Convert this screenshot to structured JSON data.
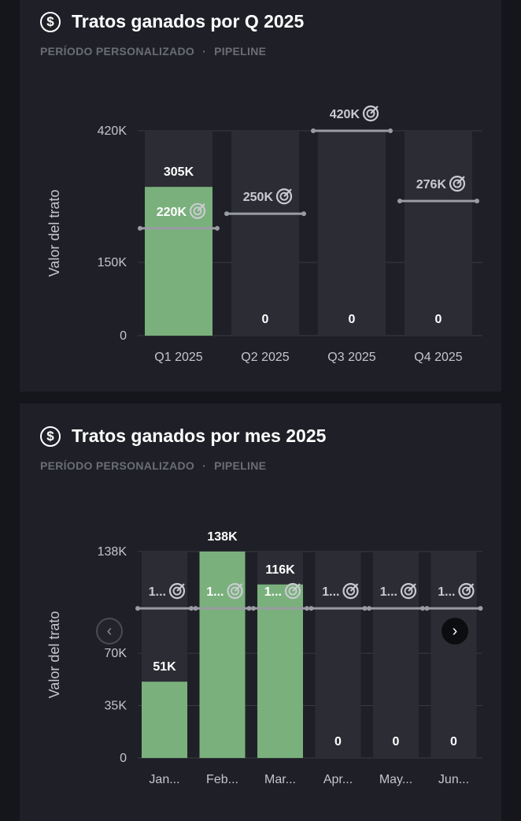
{
  "colors": {
    "bar_won": "#7ab07c",
    "bar_empty": "#2c2d34",
    "target_line": "#9a9ca3",
    "grid": "#3a3b42",
    "axis_text": "#c4c6cc",
    "value_text": "#ffffff",
    "target_text": "#c9cbd1"
  },
  "card1": {
    "title": "Tratos ganados por Q 2025",
    "period": "PERÍODO PERSONALIZADO",
    "separator": "·",
    "pipeline": "PIPELINE",
    "icon": "dollar-circle-icon"
  },
  "card2": {
    "title": "Tratos ganados por mes 2025",
    "period": "PERÍODO PERSONALIZADO",
    "separator": "·",
    "pipeline": "PIPELINE",
    "icon": "dollar-circle-icon",
    "prev_icon": "chevron-left-icon",
    "next_icon": "chevron-right-icon",
    "prev_glyph": "‹",
    "next_glyph": "›"
  },
  "chart_data": [
    {
      "type": "bar",
      "title": "Tratos ganados por Q 2025",
      "ylabel": "Valor del trato",
      "xlabel": "",
      "ylim": [
        0,
        420
      ],
      "yticks": [
        0,
        150,
        420
      ],
      "ytick_labels": [
        "0",
        "150K",
        "420K"
      ],
      "categories": [
        "Q1 2025",
        "Q2 2025",
        "Q3 2025",
        "Q4 2025"
      ],
      "values": [
        305,
        0,
        0,
        0
      ],
      "value_labels": [
        "305K",
        "0",
        "0",
        "0"
      ],
      "targets": [
        220,
        250,
        420,
        276
      ],
      "target_labels": [
        "220K",
        "250K",
        "420K",
        "276K"
      ],
      "unit": "K"
    },
    {
      "type": "bar",
      "title": "Tratos ganados por mes 2025",
      "ylabel": "Valor del trato",
      "xlabel": "",
      "ylim": [
        0,
        138
      ],
      "yticks": [
        0,
        35,
        70,
        138
      ],
      "ytick_labels": [
        "0",
        "35K",
        "70K",
        "138K"
      ],
      "categories": [
        "Jan...",
        "Feb...",
        "Mar...",
        "Apr...",
        "May...",
        "Jun..."
      ],
      "values": [
        51,
        138,
        116,
        0,
        0,
        0
      ],
      "value_labels": [
        "51K",
        "138K",
        "116K",
        "0",
        "0",
        "0"
      ],
      "targets": [
        100,
        100,
        100,
        100,
        100,
        100
      ],
      "target_labels": [
        "1...",
        "1...",
        "1...",
        "1...",
        "1...",
        "1..."
      ],
      "unit": "K"
    }
  ]
}
